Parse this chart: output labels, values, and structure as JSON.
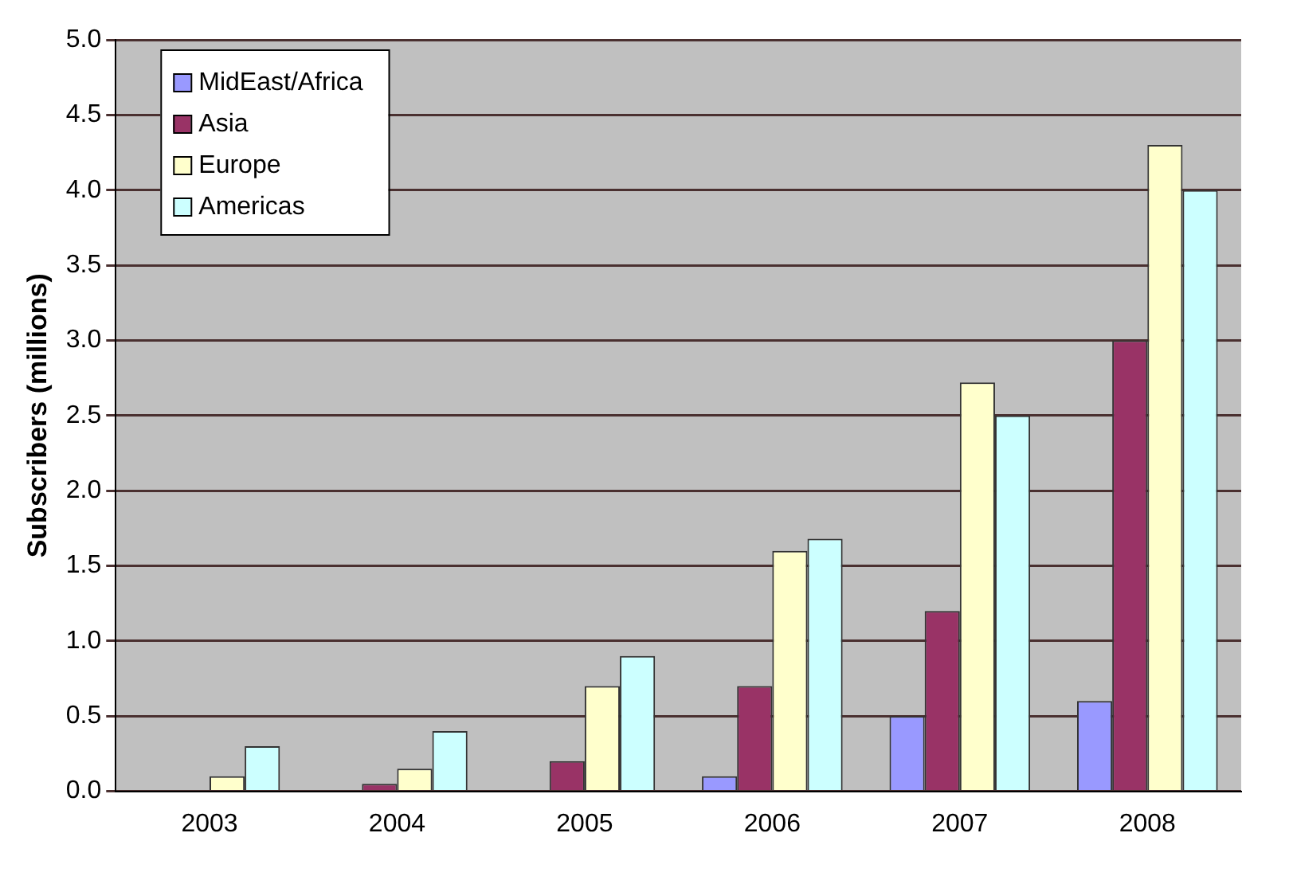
{
  "chart_data": {
    "type": "bar",
    "ylabel": "Subscribers (millions)",
    "categories": [
      "2003",
      "2004",
      "2005",
      "2006",
      "2007",
      "2008"
    ],
    "series": [
      {
        "name": "MidEast/Africa",
        "color": "#9999ff",
        "values": [
          0,
          0,
          0,
          0.1,
          0.5,
          0.6
        ]
      },
      {
        "name": "Asia",
        "color": "#993366",
        "values": [
          0,
          0.05,
          0.2,
          0.7,
          1.2,
          3.0
        ]
      },
      {
        "name": "Europe",
        "color": "#ffffcc",
        "values": [
          0.1,
          0.15,
          0.7,
          1.6,
          2.72,
          4.3
        ]
      },
      {
        "name": "Americas",
        "color": "#ccffff",
        "values": [
          0.3,
          0.4,
          0.9,
          1.68,
          2.5,
          4.0
        ]
      }
    ],
    "ylim": [
      0,
      5
    ],
    "yticks": [
      {
        "value": 0,
        "label": "0.0"
      },
      {
        "value": 0.5,
        "label": "0.5"
      },
      {
        "value": 1,
        "label": "1.0"
      },
      {
        "value": 1.5,
        "label": "1.5"
      },
      {
        "value": 2,
        "label": "2.0"
      },
      {
        "value": 2.5,
        "label": "2.5"
      },
      {
        "value": 3,
        "label": "3.0"
      },
      {
        "value": 3.5,
        "label": "3.5"
      },
      {
        "value": 4,
        "label": "4.0"
      },
      {
        "value": 4.5,
        "label": "4.5"
      },
      {
        "value": 5,
        "label": "5.0"
      }
    ],
    "grid": "y",
    "legend": "top left"
  }
}
